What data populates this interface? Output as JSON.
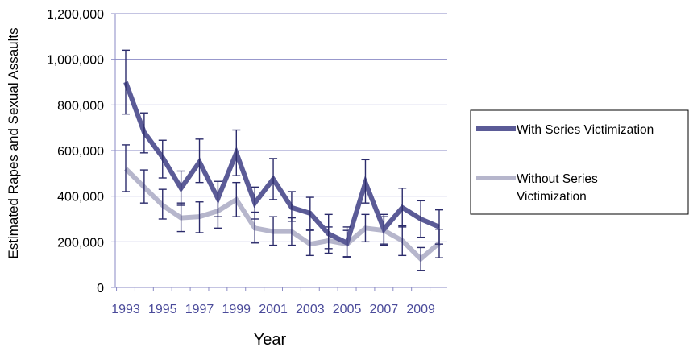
{
  "chart_data": {
    "type": "line",
    "xlabel": "Year",
    "ylabel": "Estimated Rapes and Sexual Assaults",
    "ylim": [
      0,
      1200000
    ],
    "y_ticks": [
      "0",
      "200,000",
      "400,000",
      "600,000",
      "800,000",
      "1,000,000",
      "1,200,000"
    ],
    "x_tick_labels": [
      "1993",
      "1995",
      "1997",
      "1999",
      "2001",
      "2003",
      "2005",
      "2007",
      "2009"
    ],
    "x": [
      1993,
      1994,
      1995,
      1996,
      1997,
      1998,
      1999,
      2000,
      2001,
      2002,
      2003,
      2004,
      2005,
      2006,
      2007,
      2008,
      2009,
      2010
    ],
    "grid": "horizontal",
    "legend_position": "right",
    "series": [
      {
        "name": "With Series Victimization",
        "color": "#5b5b97",
        "values": [
          900000,
          680000,
          570000,
          435000,
          550000,
          390000,
          590000,
          370000,
          475000,
          350000,
          325000,
          235000,
          195000,
          460000,
          255000,
          350000,
          300000,
          265000
        ],
        "error_low": [
          760000,
          590000,
          480000,
          360000,
          460000,
          310000,
          490000,
          300000,
          385000,
          290000,
          255000,
          170000,
          130000,
          370000,
          190000,
          265000,
          220000,
          190000
        ],
        "error_high": [
          1040000,
          765000,
          645000,
          510000,
          650000,
          465000,
          690000,
          440000,
          565000,
          420000,
          395000,
          320000,
          265000,
          560000,
          320000,
          435000,
          380000,
          340000
        ]
      },
      {
        "name": "Without Series Victimization",
        "color": "#b6b6cc",
        "values": [
          520000,
          440000,
          360000,
          305000,
          310000,
          335000,
          385000,
          260000,
          245000,
          245000,
          190000,
          205000,
          190000,
          260000,
          250000,
          205000,
          125000,
          195000
        ],
        "error_low": [
          420000,
          370000,
          300000,
          245000,
          240000,
          260000,
          310000,
          195000,
          185000,
          185000,
          140000,
          150000,
          135000,
          200000,
          185000,
          140000,
          75000,
          130000
        ],
        "error_high": [
          625000,
          515000,
          430000,
          370000,
          375000,
          410000,
          460000,
          330000,
          310000,
          305000,
          250000,
          265000,
          250000,
          320000,
          310000,
          270000,
          175000,
          255000
        ]
      }
    ]
  }
}
